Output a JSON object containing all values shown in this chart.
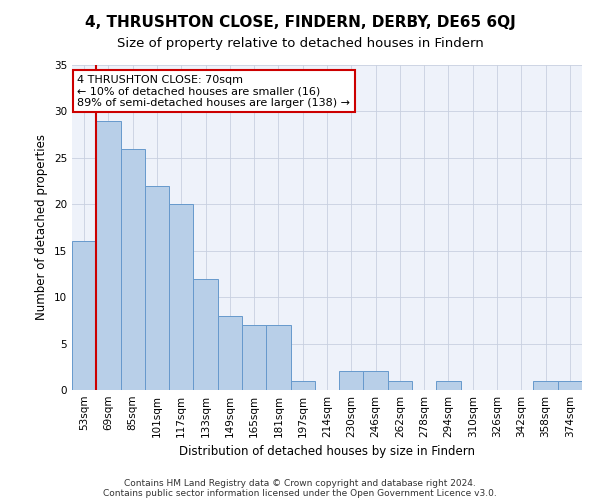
{
  "title": "4, THRUSHTON CLOSE, FINDERN, DERBY, DE65 6QJ",
  "subtitle": "Size of property relative to detached houses in Findern",
  "xlabel": "Distribution of detached houses by size in Findern",
  "ylabel": "Number of detached properties",
  "categories": [
    "53sqm",
    "69sqm",
    "85sqm",
    "101sqm",
    "117sqm",
    "133sqm",
    "149sqm",
    "165sqm",
    "181sqm",
    "197sqm",
    "214sqm",
    "230sqm",
    "246sqm",
    "262sqm",
    "278sqm",
    "294sqm",
    "310sqm",
    "326sqm",
    "342sqm",
    "358sqm",
    "374sqm"
  ],
  "values": [
    16,
    29,
    26,
    22,
    20,
    12,
    8,
    7,
    7,
    1,
    0,
    2,
    2,
    1,
    0,
    1,
    0,
    0,
    0,
    1,
    1
  ],
  "bar_color": "#b8cfe8",
  "bar_edge_color": "#6699cc",
  "vline_x_index": 1,
  "vline_color": "#cc0000",
  "annotation_text": "4 THRUSHTON CLOSE: 70sqm\n← 10% of detached houses are smaller (16)\n89% of semi-detached houses are larger (138) →",
  "annotation_box_color": "#ffffff",
  "annotation_box_edge": "#cc0000",
  "ylim": [
    0,
    35
  ],
  "yticks": [
    0,
    5,
    10,
    15,
    20,
    25,
    30,
    35
  ],
  "footnote_line1": "Contains HM Land Registry data © Crown copyright and database right 2024.",
  "footnote_line2": "Contains public sector information licensed under the Open Government Licence v3.0.",
  "background_color": "#eef2fa",
  "grid_color": "#c8d0e0",
  "title_fontsize": 11,
  "subtitle_fontsize": 9.5,
  "xlabel_fontsize": 8.5,
  "ylabel_fontsize": 8.5,
  "tick_fontsize": 7.5,
  "annotation_fontsize": 8,
  "footnote_fontsize": 6.5
}
